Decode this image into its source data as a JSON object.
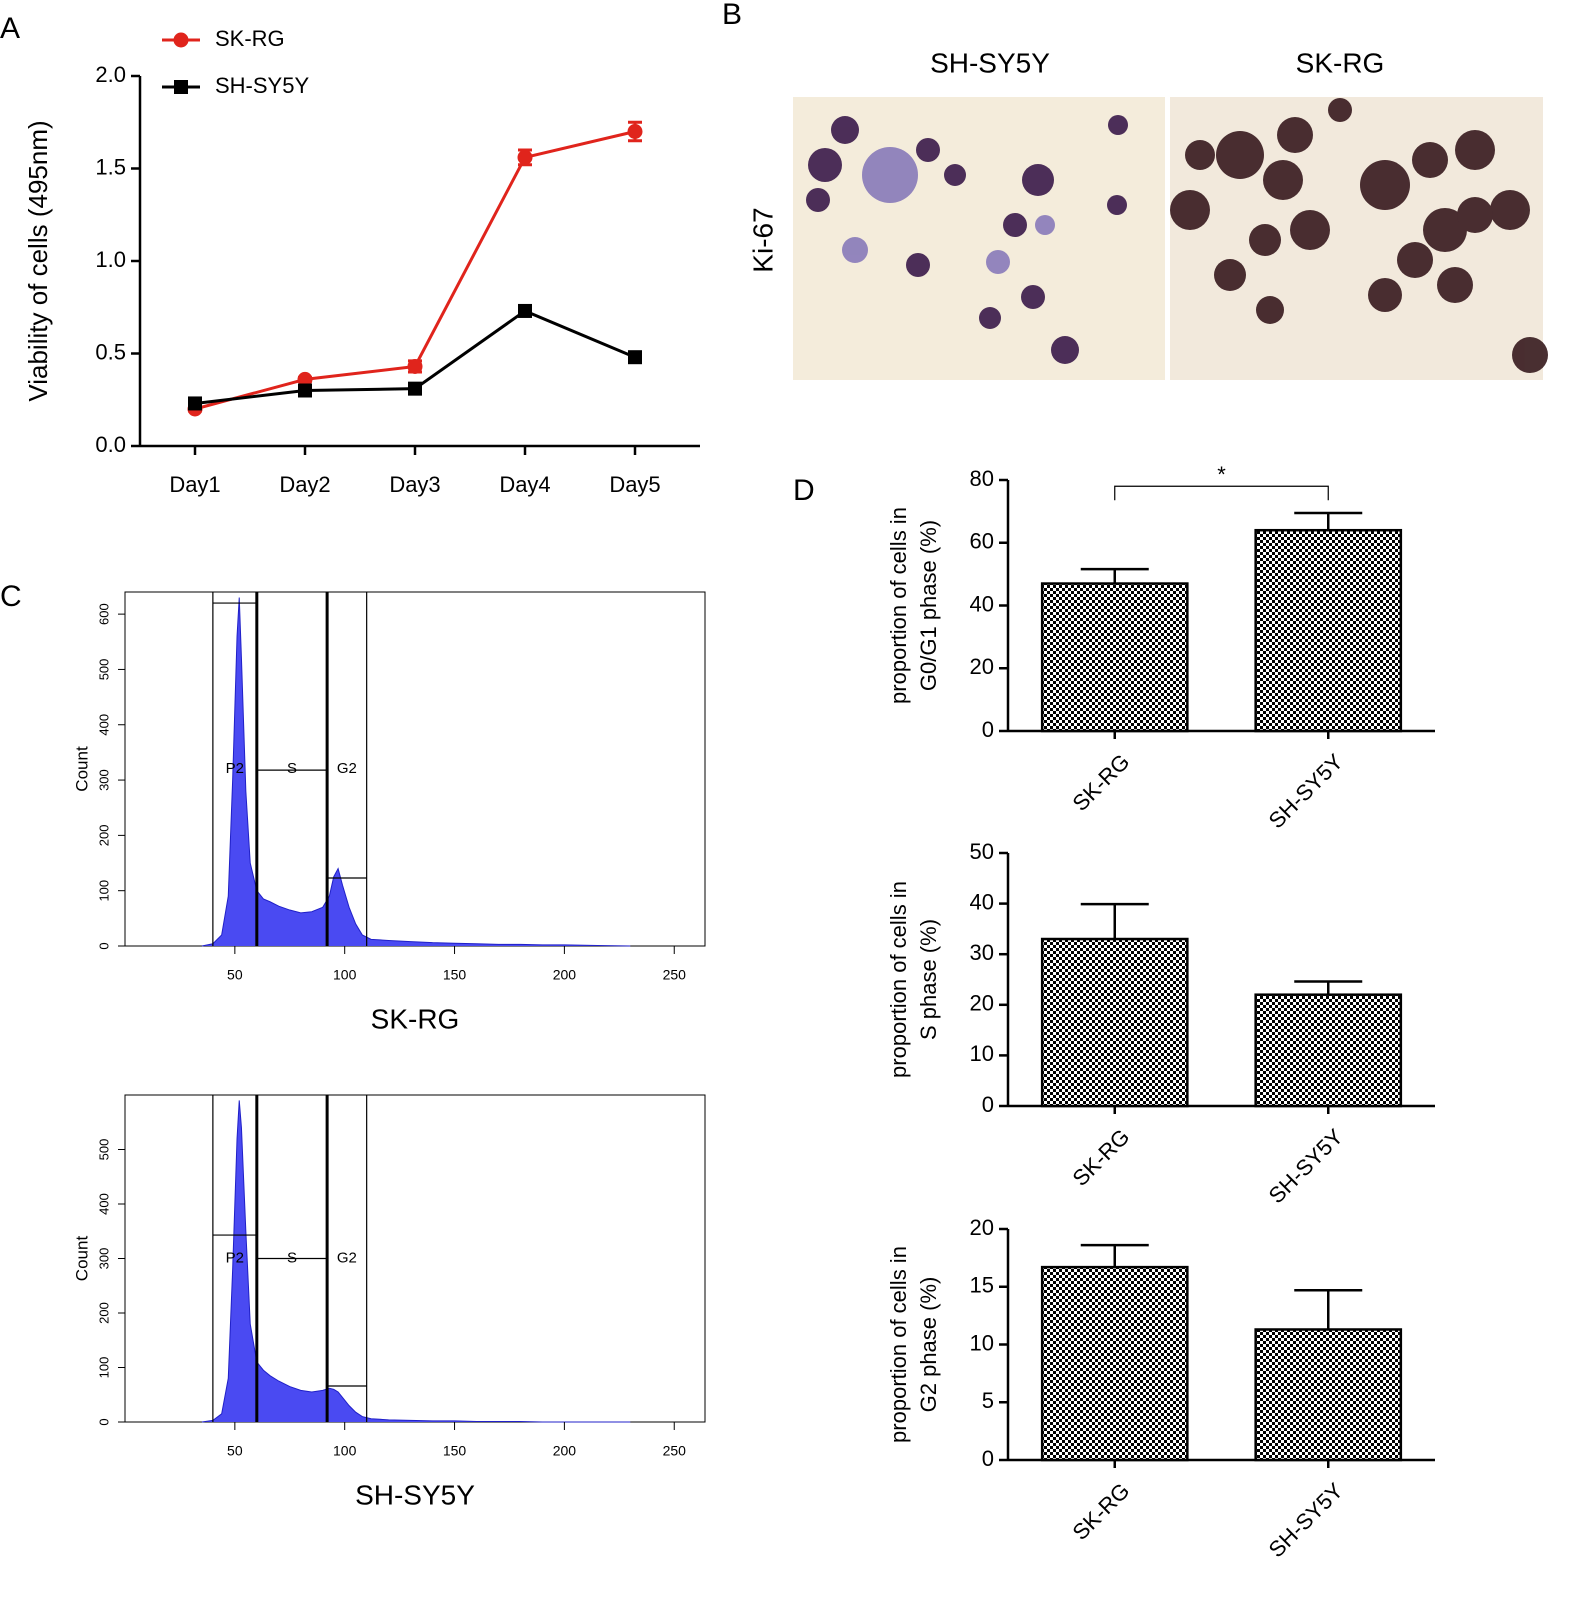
{
  "panel_letters": [
    "A",
    "B",
    "C",
    "D"
  ],
  "image_panel": {
    "column_titles": [
      "SH-SY5Y",
      "SK-RG"
    ],
    "row_label": "Ki-67"
  },
  "chart_data": [
    {
      "type": "line",
      "ylabel": "Viability of cells (495nm)",
      "categories": [
        "Day1",
        "Day2",
        "Day3",
        "Day4",
        "Day5"
      ],
      "series": [
        {
          "name": "SK-RG",
          "color": "#e0241c",
          "marker": "circle",
          "values": [
            0.2,
            0.36,
            0.43,
            1.56,
            1.7
          ],
          "errors": [
            0.01,
            0.01,
            0.03,
            0.04,
            0.05
          ]
        },
        {
          "name": "SH-SY5Y",
          "color": "#000000",
          "marker": "square",
          "values": [
            0.23,
            0.3,
            0.31,
            0.73,
            0.48
          ]
        }
      ],
      "ylim": [
        0,
        2
      ],
      "yticks": [
        {
          "value": 0,
          "label": "0.0"
        },
        0.5,
        {
          "value": 1,
          "label": "1.0"
        },
        1.5,
        {
          "value": 2,
          "label": "2.0"
        }
      ],
      "legend": "upper left"
    },
    {
      "type": "area",
      "xlabel": "SK-RG",
      "ylabel": "Count",
      "color": "#4a4af2",
      "x": [
        35,
        40,
        44,
        47,
        49,
        51,
        52,
        53,
        55,
        57,
        60,
        63,
        66,
        70,
        75,
        80,
        85,
        90,
        93,
        95,
        97,
        99,
        102,
        105,
        108,
        112,
        120,
        130,
        140,
        150,
        160,
        170,
        180,
        190,
        200,
        215,
        230
      ],
      "values": [
        0,
        4,
        20,
        90,
        300,
        560,
        630,
        520,
        280,
        150,
        100,
        85,
        80,
        72,
        65,
        60,
        62,
        70,
        90,
        125,
        140,
        110,
        70,
        40,
        20,
        12,
        10,
        8,
        6,
        5,
        4,
        3,
        3,
        2,
        2,
        1,
        0
      ],
      "xlim": [
        0,
        264
      ],
      "xticks": [
        50,
        100,
        150,
        200,
        250
      ],
      "ylim": [
        0,
        640
      ],
      "yticks": [
        0,
        100,
        200,
        300,
        400,
        500,
        600
      ],
      "gates": [
        {
          "label": "P2",
          "x": [
            40,
            60
          ],
          "y": 620
        },
        {
          "label": "S",
          "x": [
            60,
            92
          ],
          "y": 318
        },
        {
          "label": "G2",
          "x": [
            92,
            110
          ],
          "y": 123
        }
      ]
    },
    {
      "type": "area",
      "xlabel": "SH-SY5Y",
      "ylabel": "Count",
      "color": "#4a4af2",
      "x": [
        35,
        40,
        44,
        47,
        49,
        51,
        52,
        53,
        55,
        57,
        60,
        63,
        66,
        70,
        75,
        80,
        85,
        90,
        93,
        95,
        97,
        99,
        102,
        105,
        108,
        112,
        120,
        130,
        140,
        150,
        160,
        170,
        180,
        190,
        200,
        215,
        230
      ],
      "values": [
        0,
        3,
        15,
        80,
        280,
        520,
        590,
        540,
        350,
        180,
        110,
        95,
        85,
        75,
        65,
        58,
        55,
        58,
        62,
        60,
        55,
        45,
        30,
        18,
        10,
        6,
        4,
        3,
        2,
        2,
        1,
        1,
        1,
        0,
        0,
        0,
        0
      ],
      "xlim": [
        0,
        264
      ],
      "xticks": [
        50,
        100,
        150,
        200,
        250
      ],
      "ylim": [
        0,
        600
      ],
      "yticks": [
        0,
        100,
        200,
        300,
        400,
        500
      ],
      "gates": [
        {
          "label": "P2",
          "x": [
            40,
            60
          ],
          "y": 343
        },
        {
          "label": "S",
          "x": [
            60,
            92
          ],
          "y": 300
        },
        {
          "label": "G2",
          "x": [
            92,
            110
          ],
          "y": 66
        }
      ]
    },
    {
      "type": "bar",
      "ylabel": [
        "proportion of cells in",
        "G0/G1 phase (%)"
      ],
      "color": "#000000",
      "categories": [
        "SK-RG",
        "SH-SY5Y"
      ],
      "values": [
        47,
        64
      ],
      "errors": [
        4.6,
        5.5
      ],
      "ylim": [
        0,
        80
      ],
      "yticks": [
        0,
        20,
        40,
        60,
        80
      ],
      "annotations": [
        {
          "text": "*",
          "between": [
            0,
            1
          ],
          "y": 78
        }
      ]
    },
    {
      "type": "bar",
      "ylabel": [
        "proportion of cells in",
        "S phase (%)"
      ],
      "color": "#000000",
      "categories": [
        "SK-RG",
        "SH-SY5Y"
      ],
      "values": [
        33,
        22
      ],
      "errors": [
        6.9,
        2.6
      ],
      "ylim": [
        0,
        50
      ],
      "yticks": [
        0,
        10,
        20,
        30,
        40,
        50
      ]
    },
    {
      "type": "bar",
      "ylabel": [
        "proportion of cells in",
        "G2 phase (%)"
      ],
      "color": "#000000",
      "categories": [
        "SK-RG",
        "SH-SY5Y"
      ],
      "values": [
        16.7,
        11.3
      ],
      "errors": [
        1.9,
        3.4
      ],
      "ylim": [
        0,
        20
      ],
      "yticks": [
        0,
        5,
        10,
        15,
        20
      ]
    }
  ]
}
